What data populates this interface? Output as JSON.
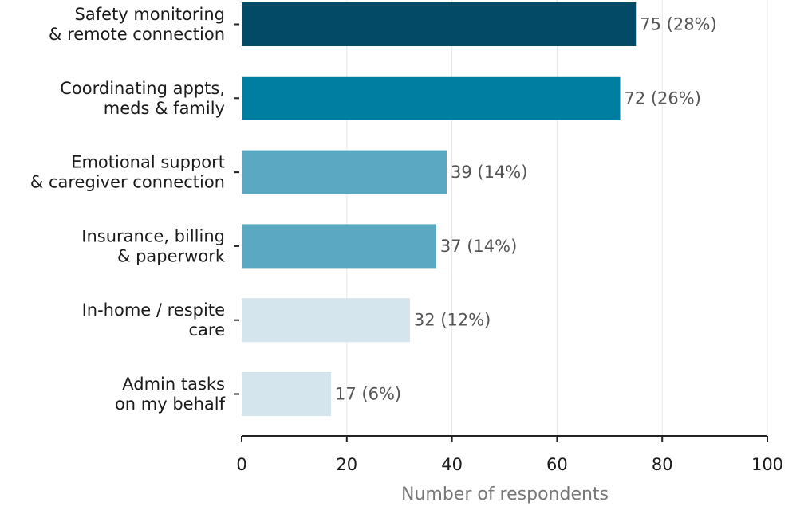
{
  "chart_data": {
    "type": "bar",
    "orientation": "horizontal",
    "title": "",
    "xlabel": "Number of respondents",
    "ylabel": "",
    "xlim": [
      0,
      100
    ],
    "x_ticks": [
      0,
      20,
      40,
      60,
      80,
      100
    ],
    "grid": "vertical",
    "legend": "none",
    "categories": [
      "Safety monitoring\n& remote connection",
      "Coordinating appts,\nmeds & family",
      "Emotional support\n& caregiver connection",
      "Insurance, billing\n& paperwork",
      "In-home / respite\ncare",
      "Admin tasks\non my behalf"
    ],
    "values": [
      75,
      72,
      39,
      37,
      32,
      17
    ],
    "data_labels": [
      "75 (28%)",
      "72 (26%)",
      "39 (14%)",
      "37 (14%)",
      "32 (12%)",
      "17 (6%)"
    ],
    "bar_colors": [
      "#034a66",
      "#007ea1",
      "#5aa8c2",
      "#5aa8c2",
      "#d4e5ee",
      "#d4e5ee"
    ]
  }
}
